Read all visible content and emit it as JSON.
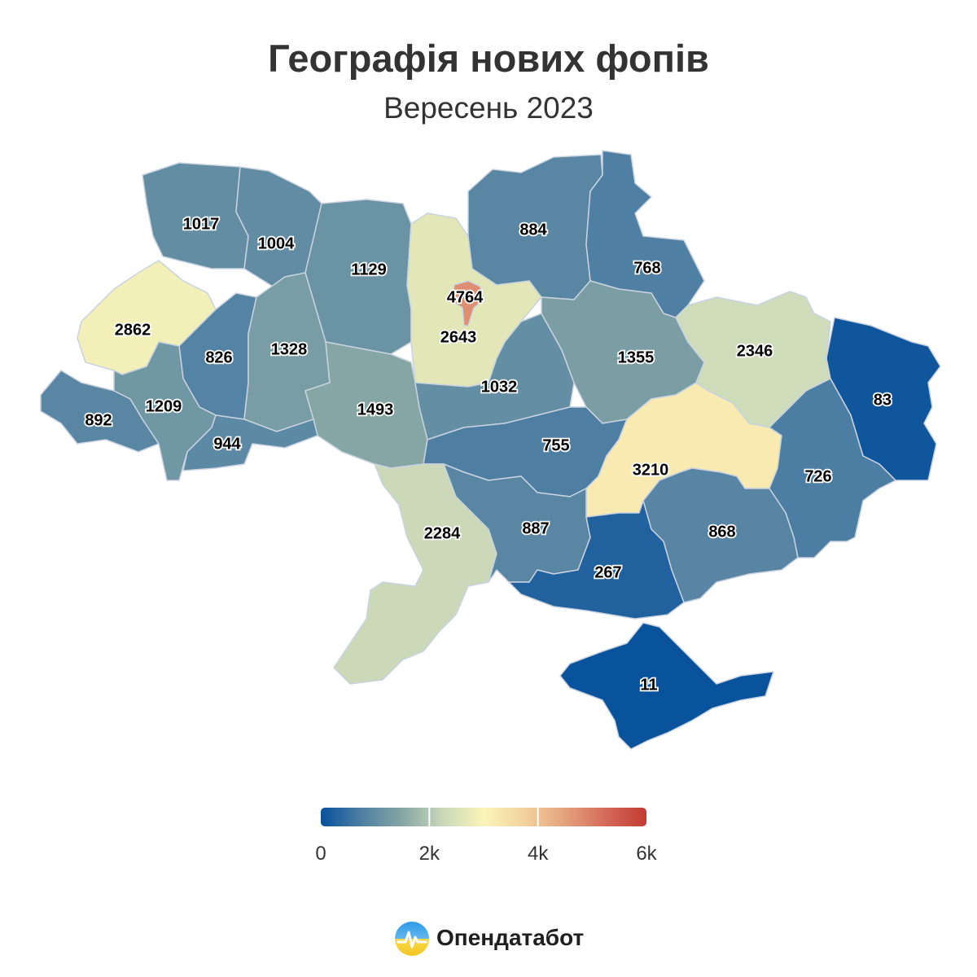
{
  "title": "Географія нових фопів",
  "subtitle": "Вересень 2023",
  "legend": {
    "min": 0,
    "max": 6000,
    "ticks": [
      {
        "value": 0,
        "label": "0"
      },
      {
        "value": 2000,
        "label": "2k"
      },
      {
        "value": 4000,
        "label": "4k"
      },
      {
        "value": 6000,
        "label": "6k"
      }
    ],
    "color_stops": [
      "#08519c",
      "#4e7fa3",
      "#86a6a4",
      "#c9d8b9",
      "#fbf4b8",
      "#f3d29e",
      "#e4a27e",
      "#d46a59",
      "#c23b32"
    ]
  },
  "regions": {
    "volyn": {
      "value": "1017"
    },
    "rivne": {
      "value": "1004"
    },
    "zhytomyr": {
      "value": "1129"
    },
    "kyiv_city": {
      "value": "4764"
    },
    "kyiv_oblast": {
      "value": "2643"
    },
    "chernihiv": {
      "value": "884"
    },
    "sumy": {
      "value": "768"
    },
    "lviv": {
      "value": "2862"
    },
    "ternopil": {
      "value": "826"
    },
    "khmelnytskyi": {
      "value": "1328"
    },
    "vinnytsia": {
      "value": "1493"
    },
    "cherkasy": {
      "value": "1032"
    },
    "poltava": {
      "value": "1355"
    },
    "kharkiv": {
      "value": "2346"
    },
    "luhansk": {
      "value": "83"
    },
    "zakarpattia": {
      "value": "892"
    },
    "ivano_frankivsk": {
      "value": "1209"
    },
    "chernivtsi": {
      "value": "944"
    },
    "kirovohrad": {
      "value": "755"
    },
    "dnipropetrovsk": {
      "value": "3210"
    },
    "donetsk": {
      "value": "726"
    },
    "odesa": {
      "value": "2284"
    },
    "mykolaiv": {
      "value": "887"
    },
    "zaporizhzhia": {
      "value": "868"
    },
    "kherson": {
      "value": "267"
    },
    "crimea": {
      "value": "11"
    }
  },
  "logo": {
    "text": "Опендатабот"
  }
}
